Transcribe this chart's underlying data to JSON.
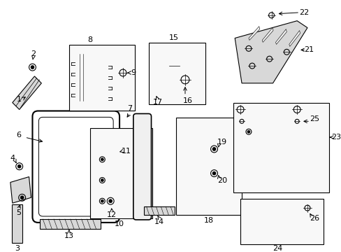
{
  "bg_color": "#ffffff",
  "line_color": "#000000",
  "gray_fill": "#d8d8d8",
  "light_fill": "#f0f0f0",
  "box_fill": "#f8f8f8",
  "figsize": [
    4.89,
    3.6
  ],
  "dpi": 100
}
